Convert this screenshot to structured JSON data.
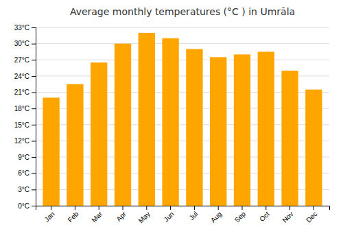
{
  "chart_data": {
    "type": "bar",
    "title": "Average monthly temperatures (°C ) in Umrāla",
    "categories": [
      "Jan",
      "Feb",
      "Mar",
      "Apr",
      "May",
      "Jun",
      "Jul",
      "Aug",
      "Sep",
      "Oct",
      "Nov",
      "Dec"
    ],
    "values": [
      20.0,
      22.5,
      26.5,
      30.0,
      32.0,
      31.0,
      29.0,
      27.5,
      28.0,
      28.5,
      25.0,
      21.5
    ],
    "color": "#FFA500",
    "ylim": [
      0,
      33
    ],
    "yticks": [
      {
        "value": 0,
        "label": "0°C"
      },
      {
        "value": 3,
        "label": "3°C"
      },
      {
        "value": 6,
        "label": "6°C"
      },
      {
        "value": 9,
        "label": "9°C"
      },
      {
        "value": 12,
        "label": "12°C"
      },
      {
        "value": 15,
        "label": "15°C"
      },
      {
        "value": 18,
        "label": "18°C"
      },
      {
        "value": 21,
        "label": "21°C"
      },
      {
        "value": 24,
        "label": "24°C"
      },
      {
        "value": 27,
        "label": "27°C"
      },
      {
        "value": 30,
        "label": "30°C"
      },
      {
        "value": 33,
        "label": "33°C"
      }
    ],
    "grid": true
  }
}
